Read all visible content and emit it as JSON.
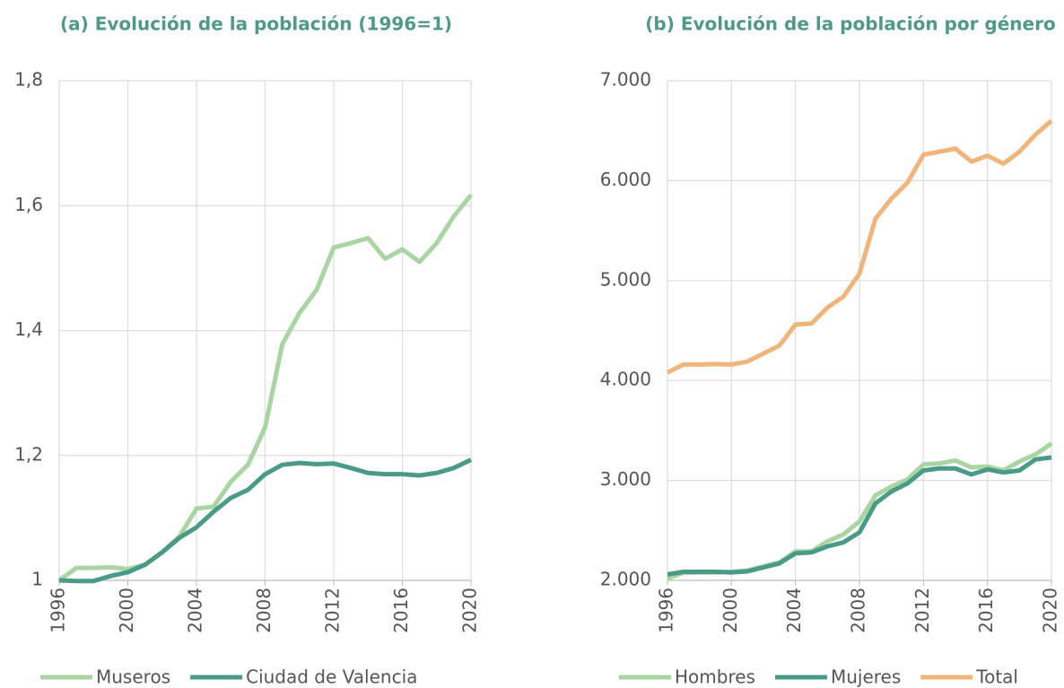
{
  "chart_data": [
    {
      "type": "line",
      "title": "(a) Evolución de la población (1996=1)",
      "x": [
        1996,
        1997,
        1998,
        1999,
        2000,
        2001,
        2002,
        2003,
        2004,
        2005,
        2006,
        2007,
        2008,
        2009,
        2010,
        2011,
        2012,
        2013,
        2014,
        2015,
        2016,
        2017,
        2018,
        2019,
        2020
      ],
      "series": [
        {
          "name": "Museros",
          "color": "#a8d5a2",
          "values": [
            1.0,
            1.02,
            1.02,
            1.021,
            1.018,
            1.025,
            1.045,
            1.07,
            1.115,
            1.118,
            1.158,
            1.185,
            1.245,
            1.378,
            1.428,
            1.465,
            1.533,
            1.54,
            1.548,
            1.515,
            1.53,
            1.51,
            1.54,
            1.583,
            1.617
          ]
        },
        {
          "name": "Ciudad de Valencia",
          "color": "#4a9a88",
          "values": [
            1.0,
            0.999,
            0.999,
            1.007,
            1.013,
            1.025,
            1.045,
            1.068,
            1.085,
            1.11,
            1.132,
            1.145,
            1.17,
            1.185,
            1.188,
            1.186,
            1.187,
            1.18,
            1.172,
            1.17,
            1.17,
            1.168,
            1.172,
            1.18,
            1.193
          ]
        }
      ],
      "xlim": [
        1996,
        2020
      ],
      "xticks": [
        1996,
        2000,
        2004,
        2008,
        2012,
        2016,
        2020
      ],
      "ylim": [
        1,
        1.8
      ],
      "yticks": [
        1,
        {
          "value": 1.2,
          "label": "1,2"
        },
        {
          "value": 1.4,
          "label": "1,4"
        },
        {
          "value": 1.6,
          "label": "1,6"
        },
        {
          "value": 1.8,
          "label": "1,8"
        }
      ],
      "grid": true,
      "legend": "bottom"
    },
    {
      "type": "line",
      "title": "(b) Evolución de la población por género",
      "x": [
        1996,
        1997,
        1998,
        1999,
        2000,
        2001,
        2002,
        2003,
        2004,
        2005,
        2006,
        2007,
        2008,
        2009,
        2010,
        2011,
        2012,
        2013,
        2014,
        2015,
        2016,
        2017,
        2018,
        2019,
        2020
      ],
      "series": [
        {
          "name": "Hombres",
          "color": "#a8d5a2",
          "values": [
            2020,
            2075,
            2080,
            2080,
            2085,
            2100,
            2140,
            2180,
            2290,
            2290,
            2390,
            2460,
            2590,
            2850,
            2940,
            3010,
            3160,
            3170,
            3200,
            3130,
            3140,
            3100,
            3190,
            3260,
            3370
          ]
        },
        {
          "name": "Mujeres",
          "color": "#4a9a88",
          "values": [
            2060,
            2085,
            2085,
            2085,
            2080,
            2090,
            2130,
            2170,
            2270,
            2280,
            2340,
            2380,
            2480,
            2770,
            2890,
            2970,
            3100,
            3120,
            3120,
            3060,
            3110,
            3080,
            3100,
            3210,
            3230
          ]
        },
        {
          "name": "Total",
          "color": "#f0b57a",
          "values": [
            4080,
            4160,
            4160,
            4165,
            4160,
            4190,
            4270,
            4350,
            4560,
            4570,
            4730,
            4840,
            5070,
            5620,
            5820,
            5980,
            6260,
            6290,
            6320,
            6190,
            6250,
            6170,
            6290,
            6460,
            6600
          ]
        }
      ],
      "xlim": [
        1996,
        2020
      ],
      "xticks": [
        1996,
        2000,
        2004,
        2008,
        2012,
        2016,
        2020
      ],
      "ylim": [
        2000,
        7000
      ],
      "yticks": [
        {
          "value": 2000,
          "label": "2.000"
        },
        {
          "value": 3000,
          "label": "3.000"
        },
        {
          "value": 4000,
          "label": "4.000"
        },
        {
          "value": 5000,
          "label": "5.000"
        },
        {
          "value": 6000,
          "label": "6.000"
        },
        {
          "value": 7000,
          "label": "7.000"
        }
      ],
      "grid": true,
      "legend": "bottom"
    }
  ]
}
